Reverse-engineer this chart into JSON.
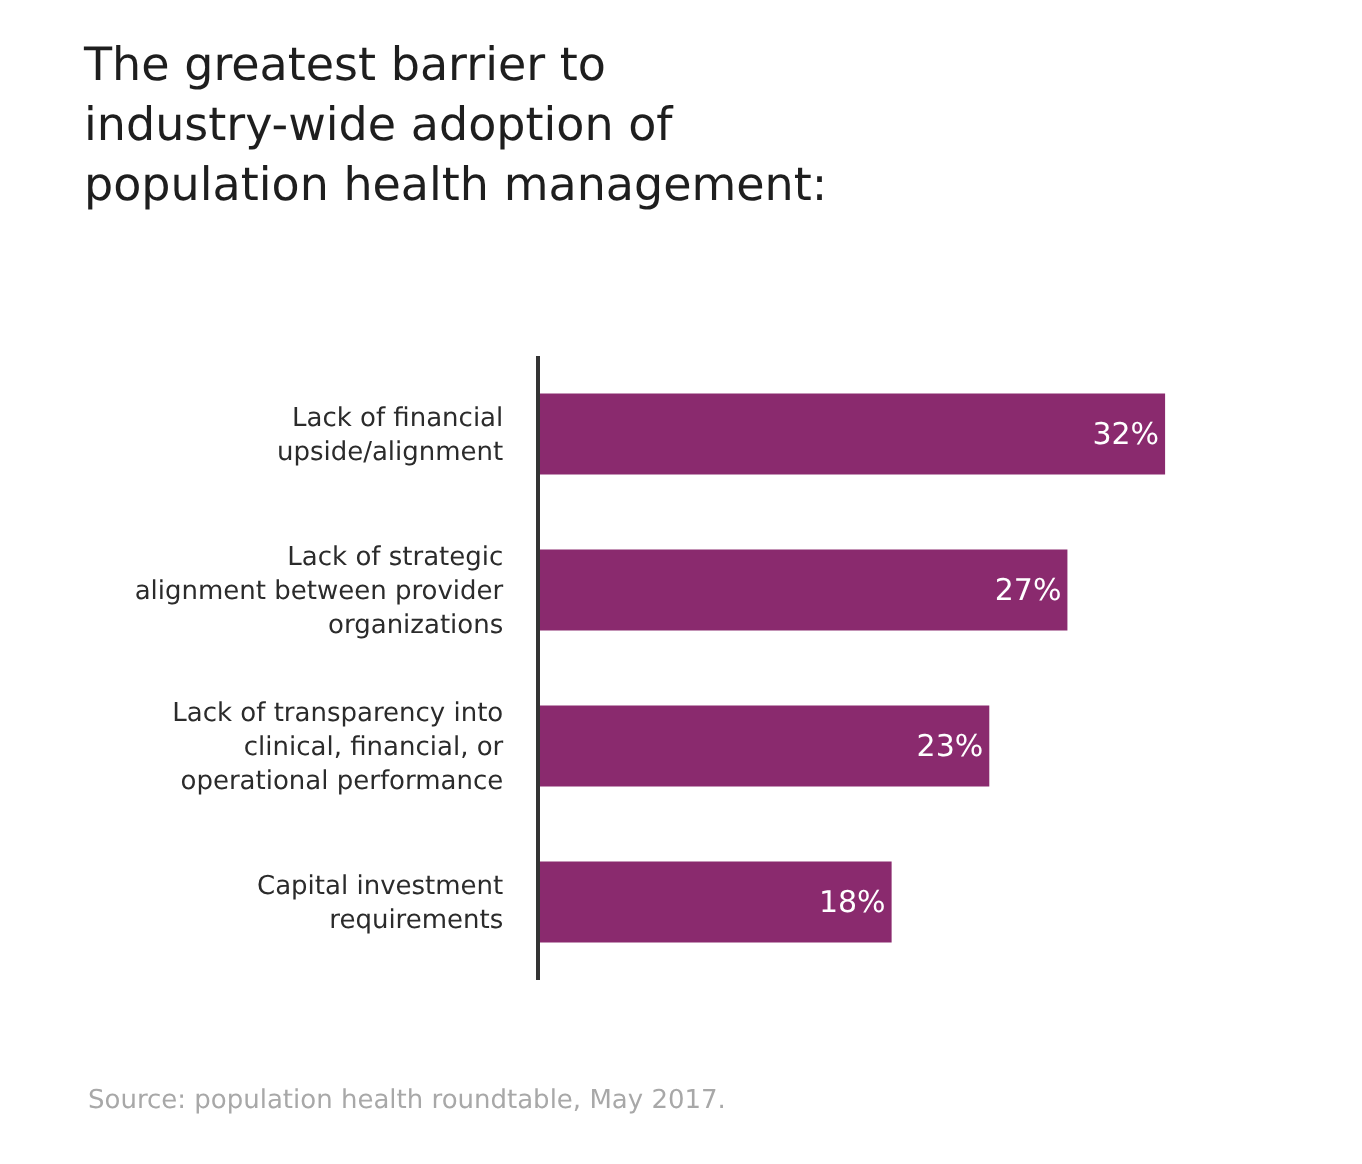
{
  "chart_data": {
    "type": "bar",
    "orientation": "horizontal",
    "title": "The greatest barrier to industry-wide adoption of population health management:",
    "categories": [
      "Lack of financial upside/alignment",
      "Lack of strategic alignment between provider organizations",
      "Lack of transparency into clinical, financial, or operational performance",
      "Capital investment requirements"
    ],
    "values": [
      32,
      27,
      23,
      18
    ],
    "value_labels": [
      "32%",
      "27%",
      "23%",
      "18%"
    ],
    "color": "#8a2a6e",
    "grid": false,
    "annotations": [
      "Source: population health roundtable, May 2017."
    ]
  }
}
